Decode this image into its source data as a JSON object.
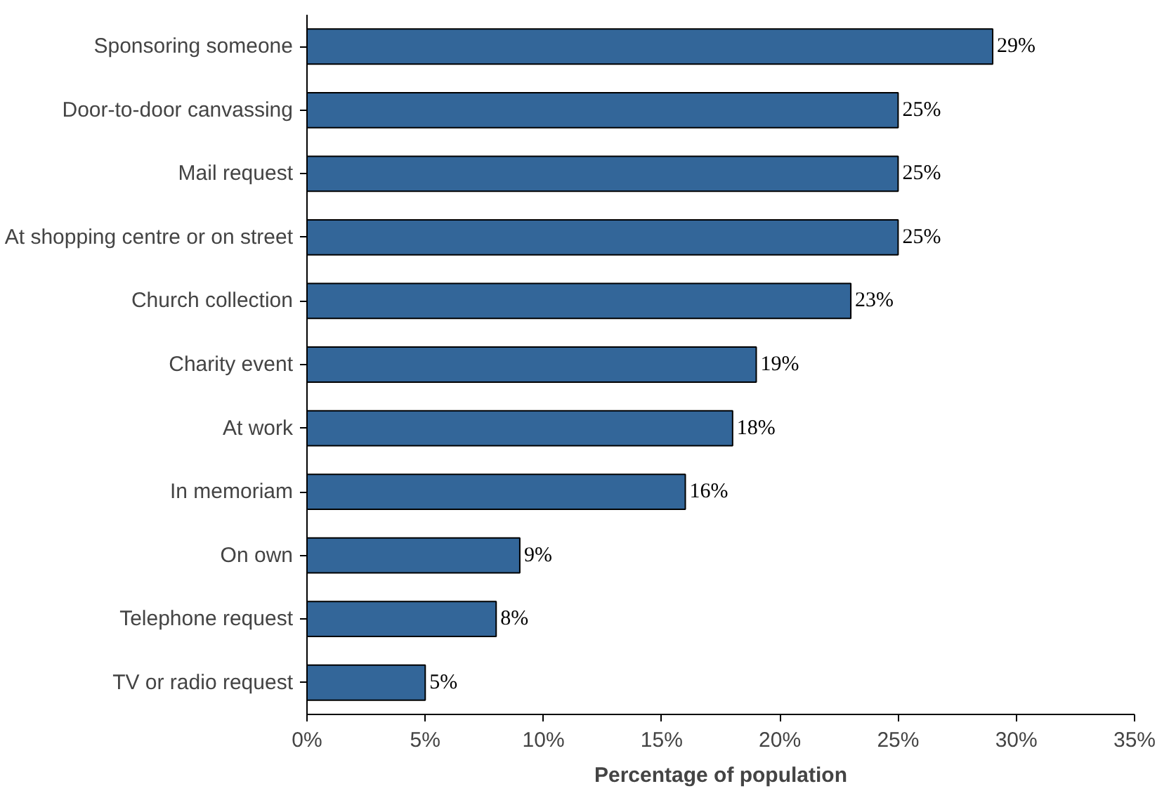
{
  "chart_data": {
    "type": "bar",
    "orientation": "horizontal",
    "xlabel": "Percentage of population",
    "categories": [
      "Sponsoring someone",
      "Door-to-door canvassing",
      "Mail request",
      "At shopping centre or on street",
      "Church collection",
      "Charity event",
      "At work",
      "In memoriam",
      "On own",
      "Telephone request",
      "TV or radio request"
    ],
    "values": [
      29,
      25,
      25,
      25,
      23,
      19,
      18,
      16,
      9,
      8,
      5
    ],
    "value_labels": [
      "29%",
      "25%",
      "25%",
      "25%",
      "23%",
      "19%",
      "18%",
      "16%",
      "9%",
      "8%",
      "5%"
    ],
    "color": "#336699",
    "xlim": [
      0,
      35
    ],
    "xticks": [
      {
        "value": 0,
        "label": "0%"
      },
      {
        "value": 5,
        "label": "5%"
      },
      {
        "value": 10,
        "label": "10%"
      },
      {
        "value": 15,
        "label": "15%"
      },
      {
        "value": 20,
        "label": "20%"
      },
      {
        "value": 25,
        "label": "25%"
      },
      {
        "value": 30,
        "label": "30%"
      },
      {
        "value": 35,
        "label": "35%"
      }
    ]
  }
}
